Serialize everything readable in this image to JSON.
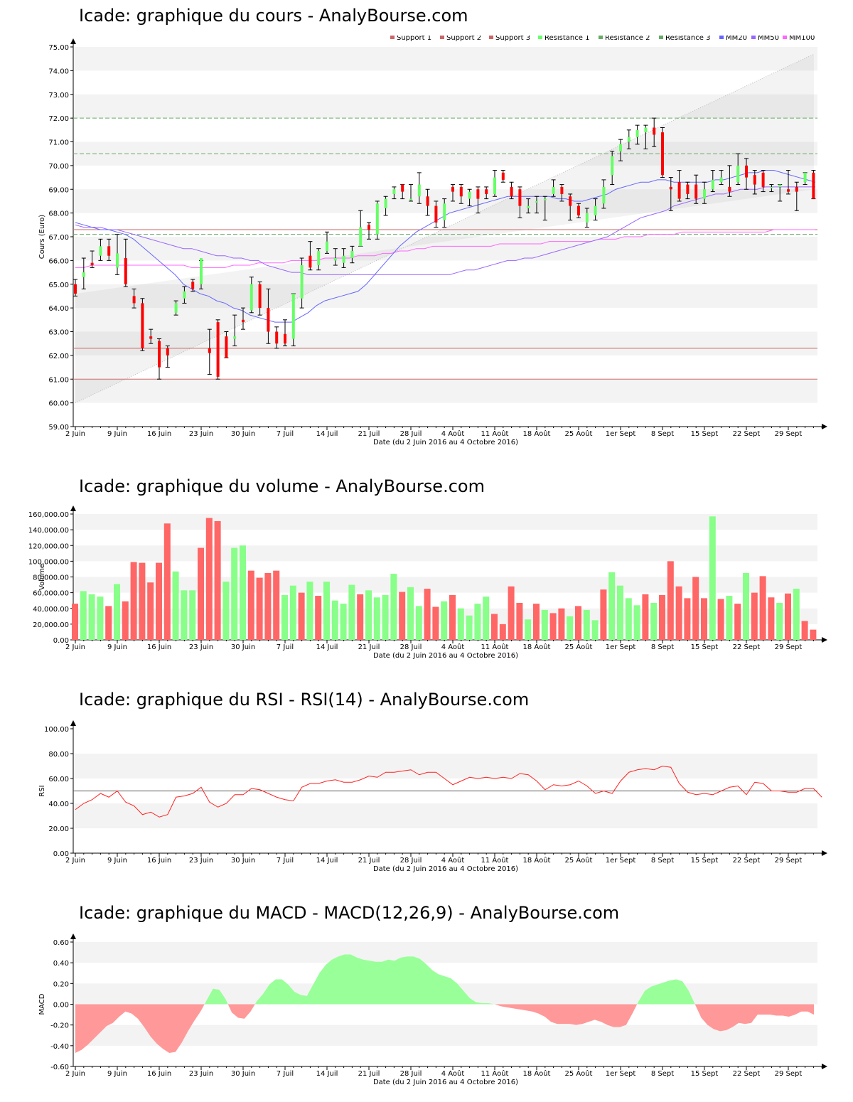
{
  "colors": {
    "up": "#66ff66",
    "down": "#ff0000",
    "vol_up": "#88ff88",
    "vol_down": "#ff6666",
    "macd_pos": "#99ff99",
    "macd_neg": "#ff9999",
    "rsi_line": "#ff2222",
    "support": "#cc6666",
    "resistance": "#66aa66",
    "mm20": "#6666ff",
    "mm50": "#9966ff",
    "mm100": "#ff66ff"
  },
  "x_ticks": [
    "2 Juin",
    "9 Juin",
    "16 Juin",
    "23 Juin",
    "30 Juin",
    "7 Juil",
    "14 Juil",
    "21 Juil",
    "28 Juil",
    "4 Août",
    "11 Août",
    "18 Août",
    "25 Août",
    "1er Sept",
    "8 Sept",
    "15 Sept",
    "22 Sept",
    "29 Sept"
  ],
  "x_label": "Date (du 2 Juin 2016 au 4 Octobre 2016)",
  "price": {
    "title": "Icade: graphique du cours - AnalyBourse.com",
    "ylabel": "Cours (Euro)",
    "ylim": [
      59,
      75
    ],
    "y_ticks": [
      "59.00",
      "60.00",
      "61.00",
      "62.00",
      "63.00",
      "64.00",
      "65.00",
      "66.00",
      "67.00",
      "68.00",
      "69.00",
      "70.00",
      "71.00",
      "72.00",
      "73.00",
      "74.00",
      "75.00"
    ],
    "legend": [
      "Support 1",
      "Support 2",
      "Support 3",
      "Résistance 1",
      "Résistance 2",
      "Résistance 3",
      "MM20",
      "MM50",
      "MM100"
    ]
  },
  "volume": {
    "title": "Icade: graphique du volume - AnalyBourse.com",
    "ylabel": "Volume",
    "y_ticks": [
      "0.00",
      "20,000.00",
      "40,000.00",
      "60,000.00",
      "80,000.00",
      "100,000.00",
      "120,000.00",
      "140,000.00",
      "160,000.00"
    ]
  },
  "rsi": {
    "title": "Icade: graphique du RSI - RSI(14) - AnalyBourse.com",
    "ylabel": "RSI",
    "y_ticks": [
      "0.00",
      "20.00",
      "40.00",
      "60.00",
      "80.00",
      "100.00"
    ]
  },
  "macd": {
    "title": "Icade: graphique du MACD - MACD(12,26,9) - AnalyBourse.com",
    "ylabel": "MACD",
    "y_ticks": [
      "-0.60",
      "-0.40",
      "-0.20",
      "0.00",
      "0.20",
      "0.40",
      "0.60"
    ]
  },
  "chart_data": [
    {
      "type": "candlestick",
      "title": "Icade: graphique du cours - AnalyBourse.com",
      "ylabel": "Cours (Euro)",
      "xlabel": "Date (du 2 Juin 2016 au 4 Octobre 2016)",
      "ylim": [
        59,
        75
      ],
      "supports": [
        67.3,
        62.3,
        61.0
      ],
      "resistances": [
        70.5,
        72.0,
        67.1
      ],
      "candles": [
        [
          65.0,
          64.6,
          65.2,
          64.5
        ],
        [
          65.3,
          65.5,
          66.1,
          64.8
        ],
        [
          65.9,
          65.8,
          66.4,
          65.7
        ],
        [
          66.2,
          66.6,
          66.9,
          66.0
        ],
        [
          66.6,
          66.2,
          66.9,
          66.0
        ],
        [
          65.7,
          66.3,
          67.1,
          65.4
        ],
        [
          66.1,
          65.0,
          66.9,
          64.9
        ],
        [
          64.5,
          64.2,
          64.8,
          64.0
        ],
        [
          64.2,
          62.3,
          64.4,
          62.2
        ],
        [
          62.8,
          62.7,
          63.1,
          62.5
        ],
        [
          62.6,
          61.5,
          62.7,
          61.0
        ],
        [
          62.3,
          62.0,
          62.4,
          61.5
        ],
        [
          63.8,
          64.2,
          64.3,
          63.7
        ],
        [
          64.4,
          64.7,
          64.9,
          64.2
        ],
        [
          65.1,
          64.8,
          65.2,
          64.7
        ],
        [
          65.0,
          66.1,
          66.0,
          64.8
        ],
        [
          62.3,
          62.1,
          63.1,
          61.2
        ],
        [
          63.4,
          61.1,
          63.5,
          61.0
        ],
        [
          62.8,
          61.9,
          63.0,
          61.9
        ],
        [
          62.7,
          62.8,
          63.7,
          62.4
        ],
        [
          63.5,
          63.4,
          64.0,
          63.1
        ],
        [
          63.9,
          65.0,
          65.3,
          63.8
        ],
        [
          65.0,
          64.0,
          65.1,
          63.7
        ],
        [
          64.0,
          63.0,
          64.8,
          62.5
        ],
        [
          63.0,
          62.5,
          63.2,
          62.3
        ],
        [
          62.9,
          62.5,
          63.5,
          62.4
        ],
        [
          62.7,
          64.6,
          64.6,
          62.4
        ],
        [
          64.4,
          65.8,
          66.1,
          64.0
        ],
        [
          66.2,
          65.7,
          66.8,
          65.6
        ],
        [
          65.8,
          66.4,
          66.5,
          65.6
        ],
        [
          66.4,
          66.8,
          67.2,
          66.3
        ],
        [
          66.0,
          66.1,
          66.5,
          65.8
        ],
        [
          65.9,
          66.2,
          66.5,
          65.7
        ],
        [
          66.1,
          66.4,
          66.6,
          65.9
        ],
        [
          66.6,
          67.4,
          68.1,
          66.6
        ],
        [
          67.5,
          67.3,
          67.6,
          66.9
        ],
        [
          67.1,
          68.4,
          68.5,
          66.9
        ],
        [
          68.2,
          68.6,
          68.7,
          67.9
        ],
        [
          68.8,
          69.0,
          69.1,
          68.6
        ],
        [
          69.2,
          68.9,
          69.2,
          68.6
        ],
        [
          68.6,
          68.6,
          69.2,
          68.5
        ],
        [
          68.7,
          69.2,
          69.7,
          68.4
        ],
        [
          68.7,
          68.3,
          69.0,
          67.9
        ],
        [
          68.3,
          67.6,
          68.5,
          67.4
        ],
        [
          67.7,
          68.4,
          68.6,
          67.4
        ],
        [
          69.1,
          68.9,
          69.2,
          68.5
        ],
        [
          69.1,
          68.7,
          69.2,
          68.4
        ],
        [
          68.6,
          68.9,
          69.0,
          68.3
        ],
        [
          69.0,
          68.6,
          69.1,
          68.0
        ],
        [
          69.0,
          68.8,
          69.1,
          68.6
        ],
        [
          68.8,
          69.5,
          69.8,
          68.7
        ],
        [
          69.7,
          69.4,
          69.8,
          69.3
        ],
        [
          69.1,
          68.7,
          69.3,
          68.6
        ],
        [
          69.0,
          68.3,
          69.1,
          67.8
        ],
        [
          68.2,
          68.3,
          68.6,
          68.0
        ],
        [
          68.5,
          68.5,
          68.7,
          68.0
        ],
        [
          68.6,
          68.6,
          68.7,
          67.7
        ],
        [
          68.8,
          69.1,
          69.4,
          68.7
        ],
        [
          69.1,
          68.8,
          69.2,
          68.5
        ],
        [
          68.7,
          68.3,
          68.8,
          67.7
        ],
        [
          68.3,
          67.9,
          68.4,
          67.8
        ],
        [
          67.6,
          68.0,
          68.2,
          67.4
        ],
        [
          67.9,
          68.3,
          68.6,
          67.7
        ],
        [
          68.4,
          69.1,
          69.4,
          68.2
        ],
        [
          69.6,
          70.4,
          70.6,
          69.2
        ],
        [
          70.6,
          70.9,
          71.1,
          70.2
        ],
        [
          71.0,
          71.2,
          71.5,
          70.7
        ],
        [
          71.2,
          71.5,
          71.7,
          70.9
        ],
        [
          71.4,
          71.6,
          71.7,
          70.7
        ],
        [
          71.6,
          71.3,
          72.0,
          70.8
        ],
        [
          71.4,
          69.6,
          71.6,
          69.5
        ],
        [
          69.1,
          69.0,
          69.5,
          68.1
        ],
        [
          69.3,
          68.6,
          69.8,
          68.5
        ],
        [
          69.2,
          68.8,
          69.3,
          68.6
        ],
        [
          69.2,
          68.6,
          69.6,
          68.4
        ],
        [
          68.6,
          69.0,
          69.3,
          68.4
        ],
        [
          69.0,
          69.4,
          69.8,
          68.9
        ],
        [
          69.3,
          69.5,
          69.8,
          69.2
        ],
        [
          69.1,
          68.9,
          70.0,
          68.7
        ],
        [
          69.3,
          70.0,
          70.5,
          69.2
        ],
        [
          70.0,
          69.5,
          70.3,
          69.0
        ],
        [
          69.6,
          69.2,
          69.8,
          68.8
        ],
        [
          69.7,
          69.1,
          69.8,
          68.9
        ],
        [
          69.1,
          69.1,
          69.2,
          68.9
        ],
        [
          69.1,
          69.2,
          69.2,
          68.5
        ],
        [
          69.0,
          68.9,
          69.8,
          68.8
        ],
        [
          69.1,
          68.9,
          69.3,
          68.1
        ],
        [
          69.3,
          69.7,
          69.7,
          69.2
        ],
        [
          69.7,
          68.6,
          69.8,
          68.6
        ]
      ],
      "mm20": [
        67.6,
        67.5,
        67.4,
        67.3,
        67.3,
        67.2,
        67.1,
        66.9,
        66.6,
        66.3,
        66.0,
        65.7,
        65.4,
        65.0,
        64.8,
        64.6,
        64.5,
        64.3,
        64.2,
        64.0,
        63.9,
        63.7,
        63.6,
        63.5,
        63.4,
        63.4,
        63.4,
        63.6,
        63.8,
        64.1,
        64.3,
        64.4,
        64.5,
        64.6,
        64.7,
        65.0,
        65.4,
        65.8,
        66.2,
        66.6,
        66.9,
        67.2,
        67.4,
        67.6,
        67.8,
        68.0,
        68.1,
        68.2,
        68.3,
        68.4,
        68.5,
        68.6,
        68.7,
        68.7,
        68.7,
        68.7,
        68.7,
        68.7,
        68.6,
        68.6,
        68.5,
        68.5,
        68.6,
        68.7,
        68.8,
        69.0,
        69.1,
        69.2,
        69.3,
        69.3,
        69.4,
        69.4,
        69.3,
        69.3,
        69.3,
        69.3,
        69.3,
        69.4,
        69.4,
        69.5,
        69.6,
        69.7,
        69.7,
        69.8,
        69.8,
        69.7,
        69.6,
        69.5,
        69.4,
        69.3
      ],
      "mm50": [
        67.5,
        67.4,
        67.4,
        67.4,
        67.3,
        67.3,
        67.2,
        67.1,
        67.0,
        66.9,
        66.8,
        66.7,
        66.6,
        66.5,
        66.5,
        66.4,
        66.3,
        66.2,
        66.2,
        66.1,
        66.1,
        66.0,
        66.0,
        65.8,
        65.7,
        65.6,
        65.5,
        65.5,
        65.4,
        65.4,
        65.4,
        65.4,
        65.4,
        65.4,
        65.4,
        65.4,
        65.4,
        65.4,
        65.4,
        65.4,
        65.4,
        65.4,
        65.4,
        65.4,
        65.4,
        65.4,
        65.5,
        65.6,
        65.6,
        65.7,
        65.8,
        65.9,
        66.0,
        66.0,
        66.1,
        66.1,
        66.2,
        66.3,
        66.4,
        66.5,
        66.6,
        66.7,
        66.8,
        66.9,
        67.0,
        67.2,
        67.4,
        67.6,
        67.8,
        67.9,
        68.0,
        68.1,
        68.3,
        68.4,
        68.5,
        68.6,
        68.7,
        68.8,
        68.8,
        68.9,
        69.0,
        69.0,
        69.0,
        69.1,
        69.1,
        69.1,
        69.1,
        69.1,
        69.1,
        69.1
      ],
      "mm100": [
        65.7,
        65.7,
        65.8,
        65.8,
        65.8,
        65.8,
        65.8,
        65.8,
        65.8,
        65.8,
        65.8,
        65.8,
        65.8,
        65.8,
        65.7,
        65.7,
        65.7,
        65.7,
        65.7,
        65.8,
        65.8,
        65.8,
        65.9,
        65.9,
        65.9,
        65.9,
        66.0,
        66.0,
        66.0,
        66.0,
        66.1,
        66.1,
        66.1,
        66.1,
        66.2,
        66.2,
        66.2,
        66.3,
        66.3,
        66.4,
        66.4,
        66.5,
        66.5,
        66.6,
        66.6,
        66.6,
        66.6,
        66.6,
        66.6,
        66.6,
        66.6,
        66.7,
        66.7,
        66.7,
        66.7,
        66.7,
        66.7,
        66.8,
        66.8,
        66.8,
        66.8,
        66.8,
        66.8,
        66.9,
        66.9,
        66.9,
        67.0,
        67.0,
        67.0,
        67.1,
        67.1,
        67.1,
        67.1,
        67.2,
        67.2,
        67.2,
        67.2,
        67.2,
        67.2,
        67.2,
        67.2,
        67.2,
        67.2,
        67.2,
        67.3,
        67.3,
        67.3,
        67.3,
        67.3,
        67.3
      ]
    },
    {
      "type": "bar",
      "title": "Icade: graphique du volume - AnalyBourse.com",
      "ylabel": "Volume",
      "ylim": [
        0,
        160000
      ],
      "values": [
        46000,
        62000,
        58000,
        55000,
        43000,
        71000,
        49000,
        99000,
        98000,
        73000,
        98000,
        148000,
        87000,
        63000,
        63000,
        117000,
        155000,
        151000,
        74000,
        117000,
        120000,
        88000,
        79000,
        85000,
        88000,
        57000,
        69000,
        60000,
        74000,
        56000,
        74000,
        50000,
        46000,
        70000,
        58000,
        63000,
        54000,
        57000,
        84000,
        61000,
        67000,
        43000,
        65000,
        42000,
        49000,
        57000,
        40000,
        31000,
        46000,
        55000,
        33000,
        20000,
        68000,
        47000,
        26000,
        46000,
        38000,
        34000,
        40000,
        30000,
        43000,
        38000,
        25000,
        64000,
        86000,
        69000,
        53000,
        44000,
        58000,
        47000,
        57000,
        100000,
        68000,
        53000,
        80000,
        53000,
        157000,
        52000,
        56000,
        46000,
        85000,
        60000,
        81000,
        54000,
        47000,
        59000,
        65000,
        24000,
        13000
      ],
      "up": [
        0,
        1,
        1,
        1,
        0,
        1,
        0,
        0,
        0,
        0,
        0,
        0,
        1,
        1,
        1,
        0,
        0,
        0,
        1,
        1,
        1,
        0,
        0,
        0,
        0,
        1,
        1,
        0,
        1,
        0,
        1,
        1,
        1,
        1,
        0,
        1,
        1,
        1,
        1,
        0,
        1,
        1,
        0,
        0,
        1,
        0,
        1,
        1,
        1,
        1,
        0,
        0,
        0,
        0,
        1,
        0,
        1,
        0,
        0,
        1,
        0,
        1,
        1,
        0,
        1,
        1,
        1,
        1,
        0,
        1,
        0,
        0,
        0,
        0,
        0,
        0,
        1,
        0,
        1,
        0,
        1,
        0,
        0,
        0,
        1,
        0,
        1,
        0,
        0
      ]
    },
    {
      "type": "line",
      "title": "Icade: graphique du RSI - RSI(14) - AnalyBourse.com",
      "ylabel": "RSI",
      "ylim": [
        0,
        100
      ],
      "reference": 50,
      "values": [
        35,
        40,
        43,
        48,
        45,
        50,
        41,
        38,
        31,
        33,
        29,
        31,
        45,
        46,
        48,
        53,
        41,
        37,
        40,
        47,
        47,
        52,
        51,
        48,
        45,
        43,
        42,
        53,
        56,
        56,
        58,
        59,
        57,
        57,
        59,
        62,
        61,
        65,
        65,
        66,
        67,
        63,
        65,
        65,
        60,
        55,
        58,
        61,
        60,
        61,
        60,
        61,
        60,
        64,
        63,
        58,
        51,
        55,
        54,
        55,
        58,
        54,
        48,
        50,
        48,
        58,
        65,
        67,
        68,
        67,
        70,
        69,
        56,
        49,
        47,
        48,
        47,
        50,
        53,
        54,
        47,
        57,
        56,
        50,
        50,
        49,
        49,
        52,
        52,
        45
      ],
      "line_style": "red"
    },
    {
      "type": "area",
      "title": "Icade: graphique du MACD - MACD(12,26,9) - AnalyBourse.com",
      "ylabel": "MACD",
      "ylim": [
        -0.6,
        0.6
      ],
      "values": [
        -0.47,
        -0.44,
        -0.39,
        -0.33,
        -0.27,
        -0.21,
        -0.18,
        -0.12,
        -0.07,
        -0.09,
        -0.14,
        -0.22,
        -0.31,
        -0.38,
        -0.43,
        -0.47,
        -0.46,
        -0.37,
        -0.26,
        -0.16,
        -0.07,
        0.04,
        0.15,
        0.14,
        0.05,
        -0.08,
        -0.13,
        -0.14,
        -0.07,
        0.03,
        0.1,
        0.19,
        0.24,
        0.24,
        0.19,
        0.12,
        0.09,
        0.08,
        0.19,
        0.3,
        0.38,
        0.43,
        0.46,
        0.48,
        0.48,
        0.45,
        0.43,
        0.42,
        0.41,
        0.41,
        0.43,
        0.42,
        0.45,
        0.46,
        0.46,
        0.44,
        0.39,
        0.33,
        0.29,
        0.27,
        0.25,
        0.2,
        0.13,
        0.06,
        0.02,
        0.01,
        0.01,
        0.0,
        -0.02,
        -0.03,
        -0.04,
        -0.05,
        -0.06,
        -0.07,
        -0.09,
        -0.12,
        -0.17,
        -0.19,
        -0.19,
        -0.19,
        -0.2,
        -0.19,
        -0.17,
        -0.15,
        -0.17,
        -0.2,
        -0.22,
        -0.22,
        -0.2,
        -0.09,
        0.03,
        0.13,
        0.17,
        0.19,
        0.21,
        0.23,
        0.24,
        0.22,
        0.13,
        0.0,
        -0.13,
        -0.2,
        -0.24,
        -0.26,
        -0.25,
        -0.22,
        -0.18,
        -0.19,
        -0.18,
        -0.1,
        -0.1,
        -0.1,
        -0.11,
        -0.11,
        -0.12,
        -0.1,
        -0.07,
        -0.07,
        -0.1
      ],
      "positive_color": "#99ff99",
      "negative_color": "#ff9999"
    }
  ]
}
